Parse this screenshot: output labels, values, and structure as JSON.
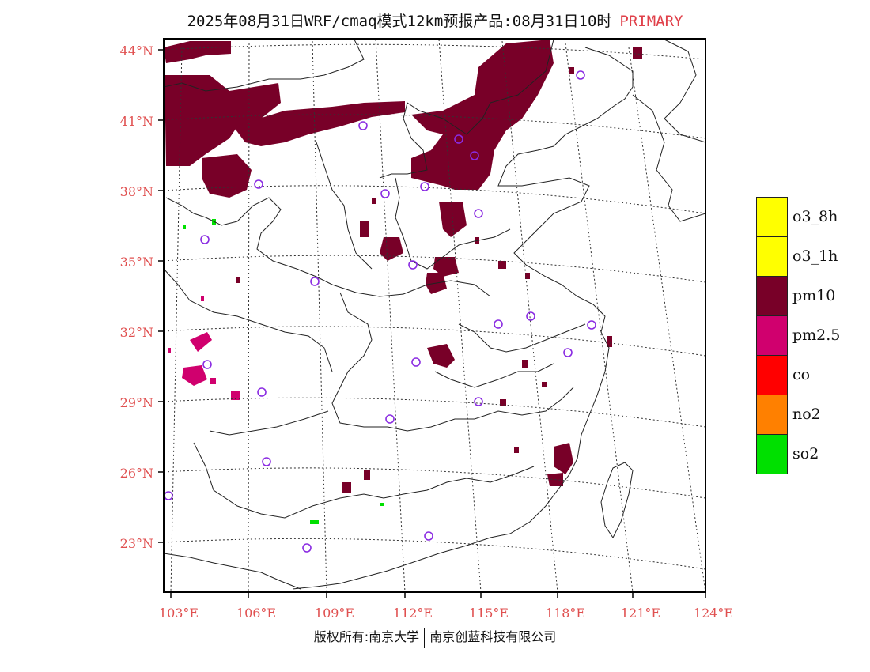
{
  "title": {
    "main": "2025年08月31日WRF/cmaq模式12km预报产品:08月31日10时",
    "tag": "PRIMARY"
  },
  "map": {
    "lat_labels": [
      "44°N",
      "41°N",
      "38°N",
      "35°N",
      "32°N",
      "29°N",
      "26°N",
      "23°N"
    ],
    "lon_labels": [
      "103°E",
      "106°E",
      "109°E",
      "112°E",
      "115°E",
      "118°E",
      "121°E",
      "124°E"
    ]
  },
  "legend": {
    "items": [
      {
        "label": "o3_8h",
        "color": "#ffff00"
      },
      {
        "label": "o3_1h",
        "color": "#ffff00"
      },
      {
        "label": "pm10",
        "color": "#780028"
      },
      {
        "label": "pm2.5",
        "color": "#d0006e"
      },
      {
        "label": "co",
        "color": "#ff0000"
      },
      {
        "label": "no2",
        "color": "#ff8000"
      },
      {
        "label": "so2",
        "color": "#00e000"
      }
    ]
  },
  "colors": {
    "pm10": "#780028",
    "pm25": "#d0006e",
    "so2": "#00e000",
    "station": "#8a2be2",
    "label": "#e05050"
  },
  "footer": {
    "left": "版权所有:南京大学",
    "right": "南京创蓝科技有限公司"
  }
}
